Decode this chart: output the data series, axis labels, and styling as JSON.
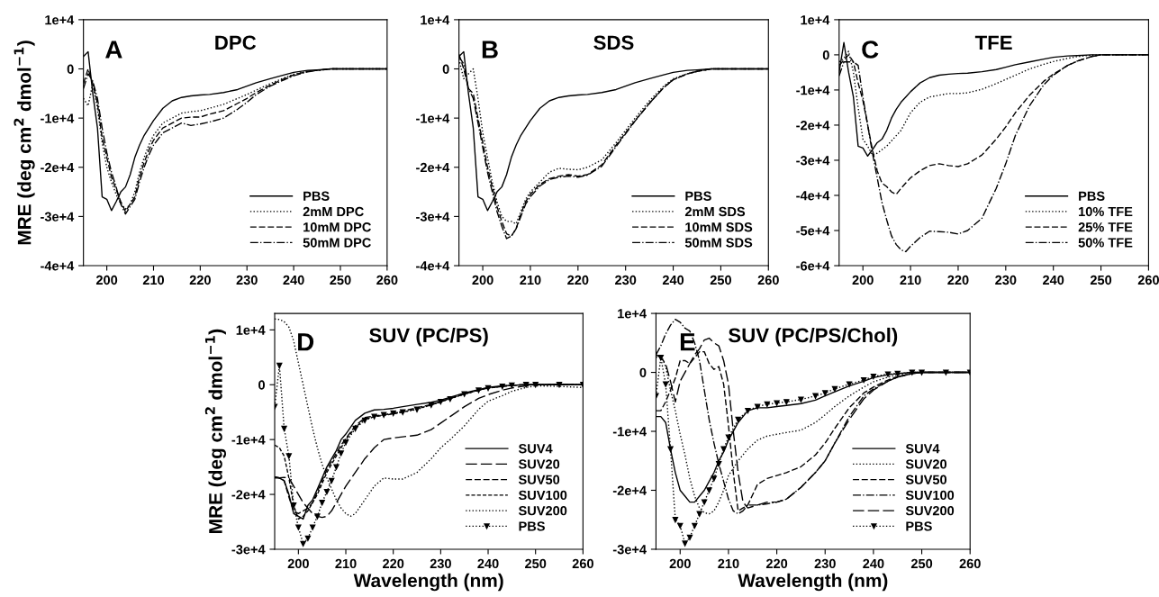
{
  "chart_data": [
    {
      "type": "line",
      "title": "DPC",
      "annotations": [
        "A"
      ],
      "ylabel": "MRE (deg cm$^{2}$ dmol$^{−1}$)",
      "legend": "bottom right",
      "grid": false,
      "x": [
        195,
        196,
        197,
        198,
        199,
        200,
        201,
        202,
        203,
        204,
        205,
        206,
        207,
        208,
        209,
        210,
        212,
        214,
        216,
        218,
        220,
        222,
        225,
        228,
        230,
        232,
        235,
        238,
        240,
        243,
        245,
        248,
        250,
        255,
        260
      ],
      "xlim": [
        195,
        260
      ],
      "xticks": [
        200,
        210,
        220,
        230,
        240,
        250,
        260
      ],
      "ylim": [
        -40000,
        10000
      ],
      "yticks": [
        {
          "value": -40000,
          "label": "-4e+4"
        },
        {
          "value": -30000,
          "label": "-3e+4"
        },
        {
          "value": -20000,
          "label": "-2e+4"
        },
        {
          "value": -10000,
          "label": "-1e+4"
        },
        0,
        {
          "value": 10000,
          "label": "1e+4"
        }
      ],
      "series": [
        {
          "name": "PBS",
          "color": "#000000",
          "line_style": "solid",
          "values": [
            2500,
            3500,
            -5000,
            -12000,
            -26000,
            -26500,
            -28800,
            -27000,
            -25000,
            -24000,
            -21500,
            -18000,
            -15500,
            -13500,
            -12000,
            -10500,
            -8000,
            -6500,
            -5800,
            -5500,
            -5300,
            -5200,
            -4800,
            -4200,
            -3500,
            -2800,
            -2000,
            -1200,
            -700,
            -300,
            -200,
            0,
            0,
            0,
            0
          ]
        },
        {
          "name": "2mM DPC",
          "color": "#000000",
          "line_style": "dotted",
          "values": [
            -6000,
            -7500,
            -3000,
            -8000,
            -15000,
            -20000,
            -23000,
            -25500,
            -27500,
            -28500,
            -27500,
            -25000,
            -21000,
            -18000,
            -15500,
            -13500,
            -11000,
            -10000,
            -9000,
            -8700,
            -8500,
            -8000,
            -7200,
            -6000,
            -5200,
            -4300,
            -3000,
            -1800,
            -1100,
            -500,
            -300,
            0,
            0,
            0,
            0
          ]
        },
        {
          "name": "10mM DPC",
          "color": "#000000",
          "line_style": "dashed",
          "values": [
            -3000,
            0,
            -3000,
            -7000,
            -14000,
            -18000,
            -22000,
            -24500,
            -27000,
            -29000,
            -27500,
            -26000,
            -22000,
            -19000,
            -16500,
            -14500,
            -12000,
            -11000,
            -10000,
            -9800,
            -9800,
            -9200,
            -8500,
            -7000,
            -6000,
            -4800,
            -3300,
            -2000,
            -1200,
            -500,
            -300,
            0,
            0,
            0,
            0
          ]
        },
        {
          "name": "50mM DPC",
          "color": "#000000",
          "line_style": "dashdot",
          "values": [
            -4000,
            -1000,
            -2500,
            -6000,
            -12000,
            -17000,
            -21000,
            -24000,
            -27500,
            -29500,
            -28000,
            -26500,
            -23000,
            -20000,
            -17500,
            -15500,
            -13000,
            -12000,
            -11000,
            -11500,
            -11200,
            -10800,
            -10000,
            -8200,
            -6800,
            -5200,
            -3500,
            -2200,
            -1400,
            -600,
            -300,
            0,
            0,
            0,
            0
          ]
        }
      ]
    },
    {
      "type": "line",
      "title": "SDS",
      "annotations": [
        "B"
      ],
      "legend": "bottom right",
      "grid": false,
      "x": [
        195,
        196,
        197,
        198,
        199,
        200,
        201,
        202,
        203,
        204,
        205,
        206,
        207,
        208,
        209,
        210,
        212,
        214,
        216,
        218,
        220,
        222,
        225,
        228,
        230,
        232,
        235,
        238,
        240,
        243,
        245,
        248,
        250,
        255,
        260
      ],
      "xlim": [
        195,
        260
      ],
      "xticks": [
        200,
        210,
        220,
        230,
        240,
        250,
        260
      ],
      "ylim": [
        -40000,
        10000
      ],
      "yticks": [
        {
          "value": -40000,
          "label": "-4e+4"
        },
        {
          "value": -30000,
          "label": "-3e+4"
        },
        {
          "value": -20000,
          "label": "-2e+4"
        },
        {
          "value": -10000,
          "label": "-1e+4"
        },
        0,
        {
          "value": 10000,
          "label": "1e+4"
        }
      ],
      "series": [
        {
          "name": "PBS",
          "color": "#000000",
          "line_style": "solid",
          "values": [
            2500,
            3500,
            -5000,
            -12000,
            -26000,
            -26500,
            -28800,
            -27000,
            -25000,
            -24000,
            -21500,
            -18000,
            -15500,
            -13500,
            -12000,
            -10500,
            -8000,
            -6500,
            -5800,
            -5500,
            -5300,
            -5200,
            -4800,
            -4200,
            -3500,
            -2800,
            -2000,
            -1200,
            -700,
            -300,
            -200,
            0,
            0,
            0,
            0
          ]
        },
        {
          "name": "2mM SDS",
          "color": "#000000",
          "line_style": "dotted",
          "values": [
            2000,
            -2000,
            -1000,
            0,
            -6000,
            -13000,
            -18000,
            -23000,
            -27000,
            -30000,
            -31000,
            -31000,
            -31500,
            -29000,
            -26500,
            -25000,
            -23000,
            -21000,
            -20200,
            -20400,
            -20500,
            -20000,
            -18500,
            -15000,
            -12500,
            -10000,
            -6500,
            -3500,
            -2000,
            -1000,
            -500,
            0,
            0,
            0,
            0
          ]
        },
        {
          "name": "10mM SDS",
          "color": "#000000",
          "line_style": "dashed",
          "values": [
            3000,
            0,
            -4000,
            -5000,
            -10000,
            -15000,
            -20000,
            -24000,
            -28000,
            -31000,
            -33500,
            -34000,
            -32500,
            -29500,
            -27000,
            -25500,
            -23500,
            -22300,
            -21800,
            -21500,
            -21800,
            -21500,
            -19500,
            -15500,
            -13000,
            -10500,
            -7000,
            -3800,
            -2200,
            -1000,
            -500,
            0,
            0,
            0,
            0
          ]
        },
        {
          "name": "50mM SDS",
          "color": "#000000",
          "line_style": "dashdot",
          "values": [
            2500,
            1000,
            -4000,
            -6000,
            -11000,
            -16000,
            -21000,
            -25000,
            -29000,
            -32000,
            -34500,
            -34000,
            -32500,
            -30000,
            -27500,
            -26000,
            -23800,
            -22500,
            -22000,
            -21800,
            -22000,
            -21600,
            -19800,
            -15800,
            -13200,
            -10600,
            -7000,
            -3800,
            -2200,
            -1000,
            -500,
            0,
            0,
            0,
            0
          ]
        }
      ]
    },
    {
      "type": "line",
      "title": "TFE",
      "annotations": [
        "C"
      ],
      "legend": "bottom right",
      "grid": false,
      "x": [
        195,
        196,
        197,
        198,
        199,
        200,
        201,
        202,
        203,
        204,
        205,
        206,
        207,
        208,
        209,
        210,
        212,
        214,
        216,
        218,
        220,
        222,
        225,
        228,
        230,
        232,
        235,
        238,
        240,
        243,
        245,
        248,
        250,
        255,
        260
      ],
      "xlim": [
        195,
        260
      ],
      "xticks": [
        200,
        210,
        220,
        230,
        240,
        250,
        260
      ],
      "ylim": [
        -60000,
        10000
      ],
      "yticks": [
        {
          "value": -60000,
          "label": "-6e+4"
        },
        {
          "value": -50000,
          "label": "-5e+4"
        },
        {
          "value": -40000,
          "label": "-4e+4"
        },
        {
          "value": -30000,
          "label": "-3e+4"
        },
        {
          "value": -20000,
          "label": "-2e+4"
        },
        {
          "value": -10000,
          "label": "-1e+4"
        },
        0,
        {
          "value": 10000,
          "label": "1e+4"
        }
      ],
      "series": [
        {
          "name": "PBS",
          "color": "#000000",
          "line_style": "solid",
          "values": [
            -5000,
            3500,
            -5000,
            -12000,
            -26000,
            -26500,
            -28800,
            -27000,
            -25000,
            -24000,
            -21500,
            -18000,
            -15500,
            -13500,
            -12000,
            -10500,
            -8000,
            -6500,
            -5800,
            -5500,
            -5300,
            -5200,
            -4800,
            -4200,
            -3500,
            -2800,
            -2000,
            -1200,
            -700,
            -300,
            -200,
            0,
            0,
            0,
            0
          ]
        },
        {
          "name": "10% TFE",
          "color": "#000000",
          "line_style": "dotted",
          "values": [
            -2000,
            -1000,
            1000,
            -5000,
            -15000,
            -24000,
            -26000,
            -28500,
            -28000,
            -27000,
            -26000,
            -24500,
            -23000,
            -21500,
            -19000,
            -16500,
            -13500,
            -12000,
            -11500,
            -11000,
            -11000,
            -10800,
            -9800,
            -8200,
            -7000,
            -5800,
            -4000,
            -2700,
            -1900,
            -1000,
            -500,
            -100,
            0,
            0,
            0
          ]
        },
        {
          "name": "25% TFE",
          "color": "#000000",
          "line_style": "dashed",
          "values": [
            -3000,
            -1500,
            0,
            -2000,
            -8000,
            -13000,
            -20000,
            -27000,
            -33000,
            -36500,
            -37500,
            -39000,
            -39700,
            -38000,
            -36500,
            -35000,
            -33000,
            -31500,
            -31000,
            -31500,
            -31800,
            -31000,
            -28500,
            -24000,
            -20500,
            -16500,
            -11500,
            -7500,
            -5500,
            -3000,
            -1800,
            -500,
            0,
            0,
            0
          ]
        },
        {
          "name": "50% TFE",
          "color": "#000000",
          "line_style": "dashdot",
          "values": [
            -6000,
            -2000,
            -2000,
            -2000,
            -3000,
            -12000,
            -20000,
            -28000,
            -35000,
            -42000,
            -47000,
            -51500,
            -54000,
            -55500,
            -56000,
            -54500,
            -52000,
            -50200,
            -50300,
            -50500,
            -51000,
            -50000,
            -46500,
            -38000,
            -31000,
            -23000,
            -14500,
            -8500,
            -5800,
            -3000,
            -1800,
            -500,
            0,
            0,
            0
          ]
        }
      ]
    },
    {
      "type": "line",
      "title": "SUV (PC/PS)",
      "annotations": [
        "D"
      ],
      "ylabel": "MRE (deg cm$^{2}$ dmol$^{−1}$)",
      "xlabel": "Wavelength (nm)",
      "legend": "bottom right",
      "grid": false,
      "x": [
        195,
        196,
        197,
        198,
        199,
        200,
        201,
        202,
        203,
        204,
        205,
        206,
        207,
        208,
        209,
        210,
        212,
        214,
        216,
        218,
        220,
        222,
        225,
        228,
        230,
        232,
        235,
        238,
        240,
        243,
        245,
        248,
        250,
        255,
        260
      ],
      "xlim": [
        195,
        260
      ],
      "xticks": [
        200,
        210,
        220,
        230,
        240,
        250,
        260
      ],
      "ylim": [
        -30000,
        13000
      ],
      "yticks": [
        {
          "value": -30000,
          "label": "-3e+4"
        },
        {
          "value": -20000,
          "label": "-2e+4"
        },
        {
          "value": -10000,
          "label": "-1e+4"
        },
        0,
        {
          "value": 10000,
          "label": "1e+4"
        }
      ],
      "series": [
        {
          "name": "SUV4",
          "color": "#000000",
          "line_style": "solid",
          "values": [
            -17000,
            -17000,
            -17500,
            -20000,
            -23500,
            -24000,
            -24500,
            -22000,
            -21000,
            -19000,
            -17000,
            -15000,
            -13500,
            -12000,
            -10000,
            -9000,
            -6500,
            -5200,
            -4600,
            -4500,
            -4300,
            -4000,
            -3600,
            -3200,
            -2800,
            -2300,
            -1500,
            -900,
            -500,
            -200,
            -100,
            0,
            0,
            100,
            0
          ]
        },
        {
          "name": "SUV20",
          "color": "#000000",
          "line_style": "long dashed",
          "values": [
            -16800,
            -17000,
            -16900,
            -17000,
            -18500,
            -20000,
            -21500,
            -22500,
            -23500,
            -24000,
            -24200,
            -24000,
            -23000,
            -21500,
            -20000,
            -18500,
            -16000,
            -13500,
            -11500,
            -10000,
            -9700,
            -9500,
            -9200,
            -8200,
            -7000,
            -5800,
            -4000,
            -2500,
            -1800,
            -1000,
            -600,
            -200,
            0,
            0,
            0
          ]
        },
        {
          "name": "SUV50",
          "color": "#000000",
          "line_style": "dashed",
          "values": [
            -16800,
            -17000,
            -17500,
            -20500,
            -23000,
            -23500,
            -23000,
            -22500,
            -21500,
            -19500,
            -17500,
            -15500,
            -14000,
            -12500,
            -11000,
            -9800,
            -7500,
            -6000,
            -5700,
            -5500,
            -5200,
            -4800,
            -4200,
            -3600,
            -3100,
            -2500,
            -1700,
            -1000,
            -600,
            -300,
            -100,
            0,
            0,
            0,
            0
          ]
        },
        {
          "name": "SUV100",
          "color": "#000000",
          "line_style": "short dashed",
          "values": [
            -11000,
            -11500,
            -13000,
            -17000,
            -22000,
            -24500,
            -24000,
            -23000,
            -21500,
            -20000,
            -18000,
            -16000,
            -14500,
            -13000,
            -11500,
            -10000,
            -7800,
            -6300,
            -5800,
            -5600,
            -5300,
            -5000,
            -4400,
            -3700,
            -3100,
            -2500,
            -1700,
            -1000,
            -600,
            -300,
            -100,
            0,
            0,
            0,
            0
          ]
        },
        {
          "name": "SUV200",
          "color": "#000000",
          "line_style": "dotted",
          "x": [
            195,
            196,
            197,
            198,
            199,
            200,
            201,
            202,
            203,
            204,
            205,
            206,
            207,
            208,
            209,
            210,
            211,
            212,
            214,
            216,
            218,
            220,
            222,
            225,
            228,
            230,
            232,
            235,
            238,
            240,
            243,
            245,
            248,
            250,
            255,
            260
          ],
          "values": [
            12000,
            11900,
            11500,
            10500,
            8000,
            4000,
            0,
            -4000,
            -8000,
            -11500,
            -14500,
            -17000,
            -19000,
            -21000,
            -22500,
            -23500,
            -24000,
            -23500,
            -21000,
            -18500,
            -17000,
            -17200,
            -17200,
            -16000,
            -13500,
            -11500,
            -10000,
            -7500,
            -4500,
            -3000,
            -2000,
            -1200,
            -500,
            -200,
            -300,
            -500
          ]
        },
        {
          "name": "PBS",
          "color": "#000000",
          "line_style": "dotted",
          "marker": "triangle",
          "values": [
            -4000,
            3500,
            -8000,
            -13000,
            -22000,
            -26000,
            -29000,
            -28000,
            -26000,
            -24000,
            -21500,
            -19500,
            -17500,
            -15000,
            -12500,
            -10500,
            -8000,
            -6500,
            -5800,
            -5500,
            -5200,
            -5000,
            -4500,
            -3700,
            -3100,
            -2600,
            -1700,
            -1000,
            -600,
            -300,
            -100,
            0,
            0,
            0,
            0
          ]
        }
      ]
    },
    {
      "type": "line",
      "title": "SUV (PC/PS/Chol)",
      "annotations": [
        "E"
      ],
      "xlabel": "Wavelength (nm)",
      "legend": "bottom right",
      "grid": false,
      "x": [
        195,
        196,
        197,
        198,
        199,
        200,
        201,
        202,
        203,
        204,
        205,
        206,
        207,
        208,
        209,
        210,
        212,
        214,
        216,
        218,
        220,
        222,
        225,
        228,
        230,
        232,
        235,
        238,
        240,
        243,
        245,
        248,
        250,
        255,
        260
      ],
      "xlim": [
        195,
        260
      ],
      "xticks": [
        200,
        210,
        220,
        230,
        240,
        250,
        260
      ],
      "ylim": [
        -30000,
        10000
      ],
      "yticks": [
        {
          "value": -30000,
          "label": "-3e+4"
        },
        {
          "value": -20000,
          "label": "-2e+4"
        },
        {
          "value": -10000,
          "label": "-1e+4"
        },
        0,
        {
          "value": 10000,
          "label": "1e+4"
        }
      ],
      "series": [
        {
          "name": "SUV4",
          "color": "#000000",
          "line_style": "solid",
          "values": [
            -7500,
            -7500,
            -8500,
            -13000,
            -17000,
            -20000,
            -21000,
            -22000,
            -22000,
            -21000,
            -20000,
            -18500,
            -17000,
            -15000,
            -13500,
            -11500,
            -8500,
            -6500,
            -6000,
            -6000,
            -5800,
            -5600,
            -5300,
            -4700,
            -4000,
            -3300,
            -2300,
            -1500,
            -900,
            -400,
            -200,
            0,
            0,
            0,
            0
          ]
        },
        {
          "name": "SUV20",
          "color": "#000000",
          "line_style": "dotted",
          "values": [
            2500,
            3000,
            1000,
            -3000,
            -6500,
            -10500,
            -14000,
            -18000,
            -21000,
            -23000,
            -23800,
            -24000,
            -23500,
            -22000,
            -20000,
            -17500,
            -15000,
            -13000,
            -11500,
            -10800,
            -10500,
            -10200,
            -9800,
            -8500,
            -7200,
            -5800,
            -4000,
            -2500,
            -1600,
            -800,
            -400,
            0,
            0,
            0,
            0
          ]
        },
        {
          "name": "SUV50",
          "color": "#000000",
          "line_style": "dashed",
          "x": [
            195,
            196,
            197,
            198,
            199,
            200,
            201,
            202,
            203,
            204,
            205,
            206,
            207,
            208,
            209,
            210,
            211,
            212,
            213,
            214,
            216,
            218,
            220,
            222,
            225,
            228,
            230,
            232,
            235,
            238,
            240,
            243,
            245,
            248,
            250,
            255,
            260
          ],
          "values": [
            -6500,
            -6500,
            -5000,
            -3000,
            -1000,
            2000,
            2000,
            1500,
            2500,
            3500,
            3500,
            1500,
            500,
            1000,
            -2000,
            -9000,
            -17000,
            -23500,
            -23000,
            -22500,
            -19000,
            -18000,
            -17500,
            -17000,
            -16000,
            -14000,
            -12000,
            -9500,
            -6000,
            -3500,
            -2500,
            -1300,
            -700,
            -200,
            0,
            0,
            0
          ]
        },
        {
          "name": "SUV100",
          "color": "#000000",
          "line_style": "dashdot",
          "x": [
            195,
            196,
            197,
            198,
            199,
            200,
            201,
            202,
            203,
            204,
            205,
            206,
            207,
            208,
            209,
            210,
            211,
            212,
            213,
            214,
            216,
            218,
            220,
            222,
            225,
            228,
            230,
            232,
            235,
            238,
            240,
            243,
            245,
            248,
            250,
            255,
            260
          ],
          "values": [
            3000,
            4500,
            6500,
            8000,
            9000,
            8500,
            7500,
            7000,
            5000,
            2000,
            -3000,
            -8000,
            -12000,
            -15500,
            -18500,
            -21500,
            -23500,
            -24000,
            -23500,
            -22500,
            -22500,
            -22300,
            -22000,
            -21500,
            -19500,
            -17000,
            -15000,
            -12000,
            -7500,
            -4000,
            -2800,
            -1500,
            -800,
            -200,
            0,
            0,
            0
          ]
        },
        {
          "name": "SUV200",
          "color": "#000000",
          "line_style": "long dashed",
          "x": [
            195,
            196,
            197,
            198,
            199,
            200,
            201,
            202,
            203,
            204,
            205,
            206,
            207,
            208,
            209,
            210,
            211,
            212,
            213,
            214,
            216,
            218,
            220,
            222,
            225,
            228,
            230,
            232,
            235,
            238,
            240,
            243,
            245,
            248,
            250,
            255,
            260
          ],
          "values": [
            3000,
            2500,
            1500,
            -1500,
            -5000,
            -1500,
            0,
            1500,
            3000,
            4000,
            5500,
            5800,
            5000,
            4500,
            2000,
            -2000,
            -10000,
            -17000,
            -22000,
            -23000,
            -22500,
            -22000,
            -22000,
            -21500,
            -19500,
            -17000,
            -15000,
            -12000,
            -8000,
            -4500,
            -3000,
            -1500,
            -800,
            -200,
            0,
            0,
            0
          ]
        },
        {
          "name": "PBS",
          "color": "#000000",
          "line_style": "dotted",
          "marker": "triangle",
          "values": [
            -4000,
            2500,
            -2000,
            -13000,
            -25000,
            -26000,
            -29000,
            -28000,
            -26000,
            -24000,
            -22000,
            -20000,
            -18000,
            -15500,
            -13000,
            -11000,
            -8000,
            -6500,
            -5800,
            -5400,
            -5200,
            -5000,
            -4600,
            -4000,
            -3500,
            -2800,
            -2000,
            -1300,
            -700,
            -300,
            -200,
            0,
            0,
            0,
            0
          ]
        }
      ]
    }
  ]
}
